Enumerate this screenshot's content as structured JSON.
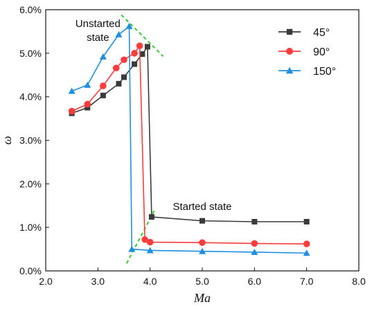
{
  "chart_data": {
    "type": "line",
    "title": "",
    "xlabel": "Ma",
    "ylabel": "ω",
    "xlim": [
      2.0,
      8.0
    ],
    "ylim": [
      0.0,
      6.0
    ],
    "x_ticks": [
      "2.0",
      "3.0",
      "4.0",
      "5.0",
      "6.0",
      "7.0",
      "8.0"
    ],
    "y_ticks": [
      "0.0%",
      "1.0%",
      "2.0%",
      "3.0%",
      "4.0%",
      "5.0%",
      "6.0%"
    ],
    "y_unit": "%",
    "grid": false,
    "legend_position": "top-right",
    "series": [
      {
        "name": "45°",
        "color": "#3a3a3a",
        "marker": "square",
        "points": [
          {
            "x": 2.5,
            "y": 3.62
          },
          {
            "x": 2.8,
            "y": 3.75
          },
          {
            "x": 3.1,
            "y": 4.03
          },
          {
            "x": 3.4,
            "y": 4.3
          },
          {
            "x": 3.5,
            "y": 4.45
          },
          {
            "x": 3.7,
            "y": 4.75
          },
          {
            "x": 3.85,
            "y": 4.98
          },
          {
            "x": 3.95,
            "y": 5.15
          },
          {
            "x": 4.03,
            "y": 1.24
          },
          {
            "x": 5.0,
            "y": 1.15
          },
          {
            "x": 6.0,
            "y": 1.13
          },
          {
            "x": 7.0,
            "y": 1.13
          }
        ]
      },
      {
        "name": "90°",
        "color": "#ff3b3b",
        "marker": "circle",
        "points": [
          {
            "x": 2.5,
            "y": 3.67
          },
          {
            "x": 2.8,
            "y": 3.83
          },
          {
            "x": 3.1,
            "y": 4.25
          },
          {
            "x": 3.35,
            "y": 4.66
          },
          {
            "x": 3.5,
            "y": 4.85
          },
          {
            "x": 3.7,
            "y": 5.0
          },
          {
            "x": 3.8,
            "y": 5.17
          },
          {
            "x": 3.9,
            "y": 0.72
          },
          {
            "x": 4.0,
            "y": 0.66
          },
          {
            "x": 5.0,
            "y": 0.65
          },
          {
            "x": 6.0,
            "y": 0.63
          },
          {
            "x": 7.0,
            "y": 0.62
          }
        ]
      },
      {
        "name": "150°",
        "color": "#1f8fe0",
        "marker": "triangle",
        "points": [
          {
            "x": 2.5,
            "y": 4.13
          },
          {
            "x": 2.8,
            "y": 4.27
          },
          {
            "x": 3.1,
            "y": 4.92
          },
          {
            "x": 3.4,
            "y": 5.43
          },
          {
            "x": 3.6,
            "y": 5.62
          },
          {
            "x": 3.65,
            "y": 0.5
          },
          {
            "x": 4.0,
            "y": 0.47
          },
          {
            "x": 5.0,
            "y": 0.45
          },
          {
            "x": 6.0,
            "y": 0.43
          },
          {
            "x": 7.0,
            "y": 0.41
          }
        ]
      }
    ],
    "annotations": [
      {
        "text_lines": [
          "Unstarted",
          "state"
        ],
        "x": 3.0,
        "y": 5.6
      },
      {
        "text_lines": [
          "Started state"
        ],
        "x": 5.0,
        "y": 1.4
      }
    ],
    "guide_lines": [
      {
        "color": "#33cc33",
        "style": "dashed",
        "x": [
          3.45,
          4.25
        ],
        "y": [
          5.88,
          4.93
        ]
      },
      {
        "color": "#33cc33",
        "style": "dashed",
        "x": [
          3.55,
          4.1
        ],
        "y": [
          0.17,
          1.43
        ]
      }
    ]
  }
}
